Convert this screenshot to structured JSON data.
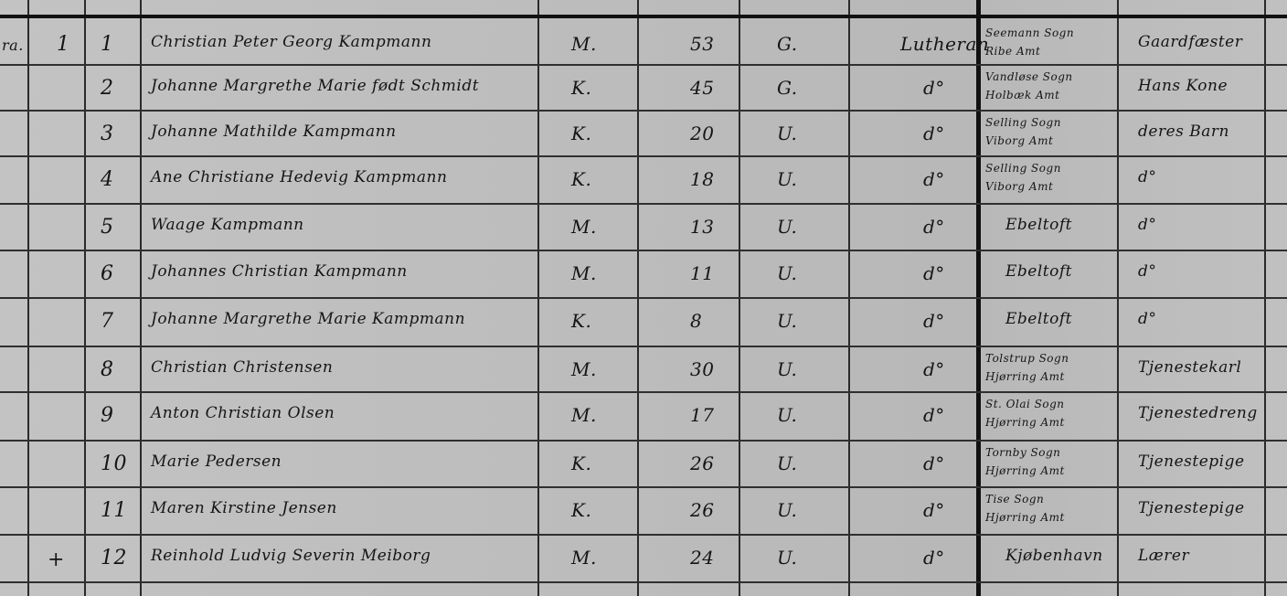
{
  "document": {
    "margin_marks": {
      "row1_col0": "ra.",
      "row1_household": "1",
      "row12_mark": "+"
    },
    "rows": [
      {
        "no": "1",
        "name": "Christian Peter Georg Kampmann",
        "sex": "M.",
        "age": "53",
        "status": "G.",
        "religion": "Lutheran",
        "birthplace": [
          "Seemann Sogn",
          "Ribe Amt"
        ],
        "position": "Gaardfæster"
      },
      {
        "no": "2",
        "name": "Johanne Margrethe Marie født Schmidt",
        "sex": "K.",
        "age": "45",
        "status": "G.",
        "religion": "d°",
        "birthplace": [
          "Vandløse Sogn",
          "Holbæk Amt"
        ],
        "position": "Hans Kone"
      },
      {
        "no": "3",
        "name": "Johanne Mathilde Kampmann",
        "sex": "K.",
        "age": "20",
        "status": "U.",
        "religion": "d°",
        "birthplace": [
          "Selling Sogn",
          "Viborg Amt"
        ],
        "position": "deres Barn"
      },
      {
        "no": "4",
        "name": "Ane Christiane Hedevig Kampmann",
        "sex": "K.",
        "age": "18",
        "status": "U.",
        "religion": "d°",
        "birthplace": [
          "Selling Sogn",
          "Viborg Amt"
        ],
        "position": "d°"
      },
      {
        "no": "5",
        "name": "Waage Kampmann",
        "sex": "M.",
        "age": "13",
        "status": "U.",
        "religion": "d°",
        "birthplace": [
          "Ebeltoft"
        ],
        "position": "d°"
      },
      {
        "no": "6",
        "name": "Johannes Christian Kampmann",
        "sex": "M.",
        "age": "11",
        "status": "U.",
        "religion": "d°",
        "birthplace": [
          "Ebeltoft"
        ],
        "position": "d°"
      },
      {
        "no": "7",
        "name": "Johanne Margrethe Marie Kampmann",
        "sex": "K.",
        "age": "8",
        "status": "U.",
        "religion": "d°",
        "birthplace": [
          "Ebeltoft"
        ],
        "position": "d°"
      },
      {
        "no": "8",
        "name": "Christian Christensen",
        "sex": "M.",
        "age": "30",
        "status": "U.",
        "religion": "d°",
        "birthplace": [
          "Tolstrup Sogn",
          "Hjørring Amt"
        ],
        "position": "Tjenestekarl"
      },
      {
        "no": "9",
        "name": "Anton Christian Olsen",
        "sex": "M.",
        "age": "17",
        "status": "U.",
        "religion": "d°",
        "birthplace": [
          "St. Olai Sogn",
          "Hjørring Amt"
        ],
        "position": "Tjenestedreng"
      },
      {
        "no": "10",
        "name": "Marie Pedersen",
        "sex": "K.",
        "age": "26",
        "status": "U.",
        "religion": "d°",
        "birthplace": [
          "Tornby Sogn",
          "Hjørring Amt"
        ],
        "position": "Tjenestepige"
      },
      {
        "no": "11",
        "name": "Maren Kirstine Jensen",
        "sex": "K.",
        "age": "26",
        "status": "U.",
        "religion": "d°",
        "birthplace": [
          "Tise Sogn",
          "Hjørring Amt"
        ],
        "position": "Tjenestepige"
      },
      {
        "no": "12",
        "name": "Reinhold Ludvig Severin Meiborg",
        "sex": "M.",
        "age": "24",
        "status": "U.",
        "religion": "d°",
        "birthplace": [
          "Kjøbenhavn"
        ],
        "position": "Lærer"
      }
    ]
  }
}
